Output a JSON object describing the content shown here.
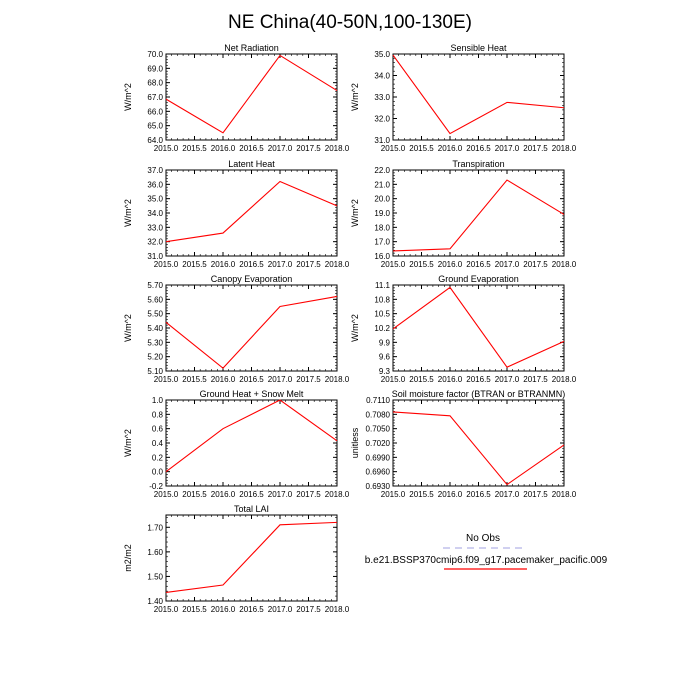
{
  "figure": {
    "title": "NE China(40-50N,100-130E)"
  },
  "legend": {
    "entries": [
      {
        "label": "No Obs",
        "color": "#b3b3e6",
        "style": "dashed"
      },
      {
        "label": "b.e21.BSSP370cmip6.f09_g17.pacemaker_pacific.009",
        "color": "#ff0000",
        "style": "solid"
      }
    ]
  },
  "chart_data": [
    {
      "type": "line",
      "title": "Net Radiation",
      "ylabel": "W/m^2",
      "x": [
        2015,
        2016,
        2017,
        2018
      ],
      "xlim": [
        2015,
        2018
      ],
      "xticks": [
        "2015.0",
        "2015.5",
        "2016.0",
        "2016.5",
        "2017.0",
        "2017.5",
        "2018.0"
      ],
      "ylim": [
        64.0,
        70.0
      ],
      "yticks": [
        "64.0",
        "65.0",
        "66.0",
        "67.0",
        "68.0",
        "69.0",
        "70.0"
      ],
      "series": [
        {
          "name": "b.e21.BSSP370cmip6.f09_g17.pacemaker_pacific.009",
          "color": "#ff0000",
          "values": [
            66.85,
            64.5,
            69.9,
            67.45
          ]
        }
      ]
    },
    {
      "type": "line",
      "title": "Sensible Heat",
      "ylabel": "W/m^2",
      "x": [
        2015,
        2016,
        2017,
        2018
      ],
      "xlim": [
        2015,
        2018
      ],
      "xticks": [
        "2015.0",
        "2015.5",
        "2016.0",
        "2016.5",
        "2017.0",
        "2017.5",
        "2018.0"
      ],
      "ylim": [
        31.0,
        35.0
      ],
      "yticks": [
        "31.0",
        "32.0",
        "33.0",
        "34.0",
        "35.0"
      ],
      "series": [
        {
          "name": "b.e21.BSSP370cmip6.f09_g17.pacemaker_pacific.009",
          "color": "#ff0000",
          "values": [
            34.95,
            31.3,
            32.75,
            32.5
          ]
        }
      ]
    },
    {
      "type": "line",
      "title": "Latent Heat",
      "ylabel": "W/m^2",
      "x": [
        2015,
        2016,
        2017,
        2018
      ],
      "xlim": [
        2015,
        2018
      ],
      "xticks": [
        "2015.0",
        "2015.5",
        "2016.0",
        "2016.5",
        "2017.0",
        "2017.5",
        "2018.0"
      ],
      "ylim": [
        31.0,
        37.0
      ],
      "yticks": [
        "31.0",
        "32.0",
        "33.0",
        "34.0",
        "35.0",
        "36.0",
        "37.0"
      ],
      "series": [
        {
          "name": "b.e21.BSSP370cmip6.f09_g17.pacemaker_pacific.009",
          "color": "#ff0000",
          "values": [
            32.0,
            32.6,
            36.2,
            34.5
          ]
        }
      ]
    },
    {
      "type": "line",
      "title": "Transpiration",
      "ylabel": "W/m^2",
      "x": [
        2015,
        2016,
        2017,
        2018
      ],
      "xlim": [
        2015,
        2018
      ],
      "xticks": [
        "2015.0",
        "2015.5",
        "2016.0",
        "2016.5",
        "2017.0",
        "2017.5",
        "2018.0"
      ],
      "ylim": [
        16.0,
        22.0
      ],
      "yticks": [
        "16.0",
        "17.0",
        "18.0",
        "19.0",
        "20.0",
        "21.0",
        "22.0"
      ],
      "series": [
        {
          "name": "b.e21.BSSP370cmip6.f09_g17.pacemaker_pacific.009",
          "color": "#ff0000",
          "values": [
            16.35,
            16.5,
            21.3,
            18.9
          ]
        }
      ]
    },
    {
      "type": "line",
      "title": "Canopy Evaporation",
      "ylabel": "W/m^2",
      "x": [
        2015,
        2016,
        2017,
        2018
      ],
      "xlim": [
        2015,
        2018
      ],
      "xticks": [
        "2015.0",
        "2015.5",
        "2016.0",
        "2016.5",
        "2017.0",
        "2017.5",
        "2018.0"
      ],
      "ylim": [
        5.1,
        5.7
      ],
      "yticks": [
        "5.10",
        "5.20",
        "5.30",
        "5.40",
        "5.50",
        "5.60",
        "5.70"
      ],
      "series": [
        {
          "name": "b.e21.BSSP370cmip6.f09_g17.pacemaker_pacific.009",
          "color": "#ff0000",
          "values": [
            5.44,
            5.12,
            5.55,
            5.62
          ]
        }
      ]
    },
    {
      "type": "line",
      "title": "Ground Evaporation",
      "ylabel": "W/m^2",
      "x": [
        2015,
        2016,
        2017,
        2018
      ],
      "xlim": [
        2015,
        2018
      ],
      "xticks": [
        "2015.0",
        "2015.5",
        "2016.0",
        "2016.5",
        "2017.0",
        "2017.5",
        "2018.0"
      ],
      "ylim": [
        9.3,
        11.1
      ],
      "yticks": [
        "9.3",
        "9.6",
        "9.9",
        "10.2",
        "10.5",
        "10.8",
        "11.1"
      ],
      "series": [
        {
          "name": "b.e21.BSSP370cmip6.f09_g17.pacemaker_pacific.009",
          "color": "#ff0000",
          "values": [
            10.18,
            11.05,
            9.38,
            9.92
          ]
        }
      ]
    },
    {
      "type": "line",
      "title": "Ground Heat + Snow Melt",
      "ylabel": "W/m^2",
      "x": [
        2015,
        2016,
        2017,
        2018
      ],
      "xlim": [
        2015,
        2018
      ],
      "xticks": [
        "2015.0",
        "2015.5",
        "2016.0",
        "2016.5",
        "2017.0",
        "2017.5",
        "2018.0"
      ],
      "ylim": [
        -0.2,
        1.0
      ],
      "yticks": [
        "-0.2",
        "0.0",
        "0.2",
        "0.4",
        "0.6",
        "0.8",
        "1.0"
      ],
      "series": [
        {
          "name": "b.e21.BSSP370cmip6.f09_g17.pacemaker_pacific.009",
          "color": "#ff0000",
          "values": [
            0.0,
            0.6,
            1.0,
            0.43
          ]
        }
      ]
    },
    {
      "type": "line",
      "title": "Soil moisture factor (BTRAN or BTRANMN)",
      "ylabel": "unitless",
      "x": [
        2015,
        2016,
        2017,
        2018
      ],
      "xlim": [
        2015,
        2018
      ],
      "xticks": [
        "2015.0",
        "2015.5",
        "2016.0",
        "2016.5",
        "2017.0",
        "2017.5",
        "2018.0"
      ],
      "ylim": [
        0.693,
        0.711
      ],
      "yticks": [
        "0.6930",
        "0.6960",
        "0.6990",
        "0.7020",
        "0.7050",
        "0.7080",
        "0.7110"
      ],
      "series": [
        {
          "name": "b.e21.BSSP370cmip6.f09_g17.pacemaker_pacific.009",
          "color": "#ff0000",
          "values": [
            0.7085,
            0.7077,
            0.6933,
            0.7016
          ]
        }
      ]
    },
    {
      "type": "line",
      "title": "Total LAI",
      "ylabel": "m2/m2",
      "x": [
        2015,
        2016,
        2017,
        2018
      ],
      "xlim": [
        2015,
        2018
      ],
      "xticks": [
        "2015.0",
        "2015.5",
        "2016.0",
        "2016.5",
        "2017.0",
        "2017.5",
        "2018.0"
      ],
      "ylim": [
        1.4,
        1.75
      ],
      "yticks": [
        "1.40",
        "1.50",
        "1.60",
        "1.70"
      ],
      "series": [
        {
          "name": "b.e21.BSSP370cmip6.f09_g17.pacemaker_pacific.009",
          "color": "#ff0000",
          "values": [
            1.435,
            1.465,
            1.71,
            1.72
          ]
        }
      ]
    }
  ]
}
